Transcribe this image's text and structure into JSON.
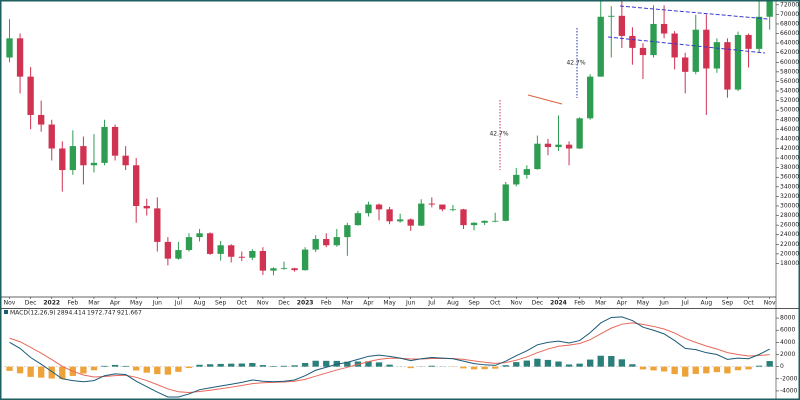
{
  "chart_data": [
    {
      "type": "candlestick",
      "x": [
        0,
        0.5,
        1,
        1.5,
        2,
        2.5,
        3,
        3.5,
        4,
        4.5,
        5,
        5.5,
        6,
        6.5,
        7,
        7.5,
        8,
        8.5,
        9,
        9.5,
        10,
        10.5,
        11,
        11.5,
        12,
        12.5,
        13,
        13.5,
        14,
        14.5,
        15,
        15.5,
        16,
        16.5,
        17,
        17.5,
        18,
        18.5,
        19,
        19.5,
        20,
        20.5,
        21,
        21.5,
        22,
        22.5,
        23,
        23.5,
        24,
        24.5,
        25,
        25.5,
        26,
        26.5,
        27,
        27.5,
        28,
        28.5,
        29,
        29.5,
        30,
        30.5,
        31,
        31.5,
        32,
        32.5,
        33,
        33.5,
        34,
        34.5,
        35,
        35.5,
        36
      ],
      "open": [
        61000,
        65000,
        57000,
        49000,
        47000,
        42000,
        37500,
        42500,
        38500,
        39000,
        46500,
        40500,
        38500,
        30000,
        29500,
        22500,
        19000,
        20800,
        23500,
        24300,
        20000,
        21800,
        19400,
        19200,
        20600,
        16500,
        17000,
        17000,
        16600,
        20900,
        23100,
        21800,
        23500,
        26000,
        28500,
        30300,
        29300,
        26800,
        27200,
        25900,
        30500,
        30300,
        29300,
        29300,
        26000,
        26500,
        26900,
        26900,
        34500,
        36500,
        37700,
        43000,
        42300,
        42800,
        42000,
        48300,
        57000,
        69500,
        69700,
        65500,
        63000,
        61500,
        68000,
        66000,
        61000,
        58000,
        66800,
        58700,
        64200,
        54300,
        65700,
        62800,
        69500
      ],
      "high": [
        69000,
        66000,
        59000,
        52000,
        48000,
        43500,
        45800,
        44500,
        45000,
        48000,
        47000,
        42500,
        40000,
        31500,
        31800,
        23500,
        22500,
        24300,
        25200,
        24500,
        22700,
        22000,
        20500,
        21000,
        21400,
        17200,
        18400,
        17100,
        21400,
        23900,
        24300,
        25200,
        26500,
        29000,
        30900,
        30500,
        29800,
        28400,
        27400,
        31400,
        31800,
        30300,
        30200,
        29400,
        26600,
        27000,
        28600,
        35000,
        37900,
        38500,
        44700,
        44000,
        48900,
        43500,
        48500,
        57500,
        73700,
        71700,
        72700,
        67300,
        64000,
        71900,
        71900,
        66500,
        62000,
        69900,
        70000,
        65000,
        65000,
        66400,
        66000,
        73500,
        76000
      ],
      "low": [
        60000,
        53500,
        46000,
        45500,
        39500,
        33000,
        36500,
        34500,
        37000,
        38500,
        39500,
        37500,
        26500,
        28000,
        20500,
        17600,
        18800,
        20500,
        22600,
        19800,
        18600,
        18200,
        18500,
        18700,
        15600,
        15500,
        16700,
        16300,
        16500,
        20400,
        21400,
        21500,
        19600,
        25900,
        27800,
        27000,
        26200,
        26500,
        24800,
        25800,
        29700,
        28900,
        28900,
        25200,
        24900,
        26000,
        26600,
        26800,
        34100,
        35700,
        37600,
        40600,
        41500,
        38500,
        41900,
        48000,
        57000,
        61000,
        63000,
        59500,
        56500,
        61000,
        65000,
        58500,
        53500,
        57500,
        49000,
        57800,
        52600,
        54000,
        58900,
        62000,
        66800
      ],
      "close": [
        65000,
        57000,
        49000,
        47000,
        42000,
        37500,
        42500,
        38500,
        39000,
        46500,
        40500,
        38500,
        30000,
        29500,
        22500,
        19000,
        20800,
        23500,
        24300,
        20000,
        21800,
        19400,
        19200,
        20600,
        16500,
        17000,
        17000,
        16600,
        20900,
        23100,
        21800,
        23500,
        26000,
        28500,
        30300,
        29300,
        26800,
        27200,
        25900,
        30500,
        30300,
        29300,
        29300,
        26000,
        26500,
        26900,
        26900,
        34500,
        36500,
        37700,
        43000,
        42300,
        42800,
        42000,
        48300,
        57000,
        69500,
        69700,
        65500,
        63000,
        61500,
        68000,
        66000,
        61000,
        58000,
        66800,
        58700,
        64200,
        54300,
        65700,
        62800,
        69500,
        75000
      ],
      "up_color": "#2e9d52",
      "down_color": "#d03251",
      "ylim": [
        11000,
        73000
      ],
      "yticks": [
        18000,
        20000,
        22000,
        24000,
        26000,
        28000,
        30000,
        32000,
        34000,
        36000,
        38000,
        40000,
        42000,
        44000,
        46000,
        48000,
        50000,
        52000,
        54000,
        56000,
        58000,
        60000,
        62000,
        64000,
        66000,
        68000,
        70000,
        72000
      ],
      "xlim": [
        -0.45,
        36.3
      ],
      "xticks": [
        {
          "value": 0,
          "label": "Nov"
        },
        {
          "value": 1,
          "label": "Dec"
        },
        {
          "value": 2,
          "label": "2022"
        },
        {
          "value": 3,
          "label": "Feb"
        },
        {
          "value": 4,
          "label": "Mar"
        },
        {
          "value": 5,
          "label": "Apr"
        },
        {
          "value": 6,
          "label": "May"
        },
        {
          "value": 7,
          "label": "Jun"
        },
        {
          "value": 8,
          "label": "Jul"
        },
        {
          "value": 9,
          "label": "Aug"
        },
        {
          "value": 10,
          "label": "Sep"
        },
        {
          "value": 11,
          "label": "Oct"
        },
        {
          "value": 12,
          "label": "Nov"
        },
        {
          "value": 13,
          "label": "Dec"
        },
        {
          "value": 14,
          "label": "2023"
        },
        {
          "value": 15,
          "label": "Feb"
        },
        {
          "value": 16,
          "label": "Mar"
        },
        {
          "value": 17,
          "label": "Apr"
        },
        {
          "value": 18,
          "label": "May"
        },
        {
          "value": 19,
          "label": "Jun"
        },
        {
          "value": 20,
          "label": "Jul"
        },
        {
          "value": 21,
          "label": "Aug"
        },
        {
          "value": 22,
          "label": "Sep"
        },
        {
          "value": 23,
          "label": "Oct"
        },
        {
          "value": 24,
          "label": "Nov"
        },
        {
          "value": 25,
          "label": "Dec"
        },
        {
          "value": 26,
          "label": "2024"
        },
        {
          "value": 27,
          "label": "Feb"
        },
        {
          "value": 28,
          "label": "Mar"
        },
        {
          "value": 29,
          "label": "Apr"
        },
        {
          "value": 30,
          "label": "May"
        },
        {
          "value": 31,
          "label": "Jun"
        },
        {
          "value": 32,
          "label": "Jul"
        },
        {
          "value": 33,
          "label": "Aug"
        },
        {
          "value": 34,
          "label": "Sep"
        },
        {
          "value": 35,
          "label": "Oct"
        },
        {
          "value": 36,
          "label": "Nov"
        }
      ],
      "annotations": [
        {
          "text": "42.7%"
        },
        {
          "text": "42.7%"
        }
      ]
    },
    {
      "type": "macd",
      "title": "MACD(12,26,9)",
      "ylim": [
        -5500,
        9500
      ],
      "yticks": [
        -4000,
        -2000,
        0,
        2000,
        4000,
        6000,
        8000
      ],
      "series": [
        {
          "color": "#1b5a78",
          "values": [
            4000,
            3000,
            1500,
            400,
            -800,
            -2000,
            -2300,
            -2500,
            -2300,
            -1500,
            -1200,
            -1300,
            -2400,
            -3300,
            -4200,
            -5000,
            -5000,
            -4500,
            -3800,
            -3500,
            -3200,
            -2900,
            -2600,
            -2200,
            -2400,
            -2500,
            -2400,
            -2200,
            -1500,
            -600,
            -100,
            400,
            700,
            1200,
            1700,
            1900,
            1700,
            1400,
            1000,
            1300,
            1500,
            1400,
            1300,
            900,
            500,
            300,
            200,
            900,
            1800,
            2600,
            3600,
            4000,
            4200,
            3900,
            4300,
            5600,
            7200,
            8100,
            8200,
            7600,
            6500,
            6000,
            5400,
            4300,
            3000,
            2800,
            2300,
            2000,
            1200,
            1400,
            1300,
            2000,
            2894.414
          ]
        },
        {
          "color": "#e8685a",
          "values": [
            4700,
            4105,
            3193,
            2216,
            1160,
            54,
            -770,
            -1376,
            -1699,
            -1629,
            -1479,
            -1416,
            -1760,
            -2299,
            -2964,
            -3677,
            -4140,
            -4266,
            -4103,
            -3892,
            -3650,
            -3388,
            -3112,
            -2793,
            -2655,
            -2601,
            -2531,
            -2415,
            -2095,
            -1572,
            -1057,
            -547,
            -111,
            348,
            821,
            1199,
            1374,
            1383,
            1249,
            1267,
            1349,
            1367,
            1344,
            1189,
            948,
            721,
            539,
            665,
            1062,
            1600,
            2300,
            2895,
            3352,
            3544,
            3809,
            4436,
            5403,
            6347,
            6996,
            7207,
            6960,
            6624,
            6196,
            5532,
            4646,
            4000,
            3405,
            2913,
            2313,
            1993,
            1750,
            1838,
            1972.747
          ]
        },
        {
          "color": "#2a7f7a",
          "negative_color": "#eda33a",
          "values": [
            -700,
            -1105,
            -1693,
            -1816,
            -1960,
            -2054,
            -1530,
            -1124,
            -601,
            129,
            279,
            116,
            -640,
            -1001,
            -1236,
            -1323,
            -860,
            -234,
            303,
            392,
            450,
            488,
            512,
            593,
            255,
            101,
            131,
            215,
            595,
            972,
            957,
            947,
            811,
            852,
            879,
            701,
            326,
            17,
            -249,
            33,
            151,
            33,
            -44,
            -289,
            -448,
            -421,
            -339,
            235,
            738,
            1000,
            1300,
            1105,
            848,
            356,
            491,
            1164,
            1797,
            1753,
            1204,
            393,
            -460,
            -624,
            -796,
            -1232,
            -1646,
            -1200,
            -1105,
            -913,
            -1113,
            -593,
            -450,
            162,
            921.667
          ]
        }
      ]
    }
  ]
}
